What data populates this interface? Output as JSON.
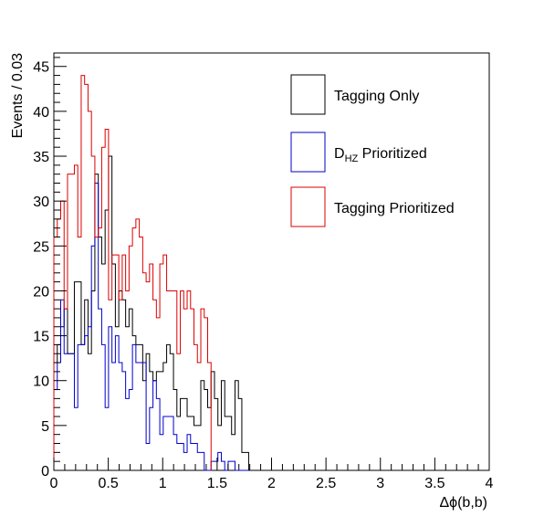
{
  "chart_data": {
    "type": "histogram",
    "title": "",
    "xlabel": "Δϕ(b,b)",
    "ylabel": "Events / 0.03",
    "xlim": [
      0,
      4
    ],
    "ylim": [
      0,
      46.5
    ],
    "bin_width": 0.0314,
    "x_ticks": [
      "0",
      "0.5",
      "1",
      "1.5",
      "2",
      "2.5",
      "3",
      "3.5",
      "4"
    ],
    "y_ticks": [
      "0",
      "5",
      "10",
      "15",
      "20",
      "25",
      "30",
      "35",
      "40",
      "45"
    ],
    "legend_position": "top-right",
    "grid": false,
    "series": [
      {
        "name": "Tagging Only",
        "color": "#000000",
        "values": [
          12,
          14,
          16,
          18,
          13,
          13,
          21,
          21,
          14,
          19,
          13,
          20,
          33,
          26,
          23,
          29,
          35,
          23,
          16,
          20,
          19,
          16,
          18,
          15,
          14,
          14,
          10,
          13,
          11,
          10,
          11,
          11,
          12,
          14,
          13,
          9,
          6,
          8,
          8,
          6,
          6,
          5,
          5,
          10,
          9,
          7,
          11,
          8,
          5,
          10,
          6,
          6,
          4,
          10,
          8,
          2,
          2
        ]
      },
      {
        "name": "D_HZ Prioritized",
        "color": "#0000cc",
        "values": [
          9,
          12,
          19,
          13,
          13,
          13,
          7,
          14,
          14,
          15,
          16,
          25,
          32,
          18,
          14,
          7,
          16,
          12,
          15,
          12,
          11,
          8,
          9,
          14,
          12,
          12,
          12,
          3,
          7,
          10,
          8,
          4,
          6,
          6,
          6,
          4,
          3,
          3,
          2,
          4,
          3,
          3,
          2,
          2,
          0,
          0,
          1,
          1,
          2,
          1,
          0,
          1,
          1,
          0,
          0,
          0,
          0
        ]
      },
      {
        "name": "Tagging Prioritized",
        "color": "#dd0000",
        "values": [
          26,
          28,
          30,
          18,
          33,
          33,
          34,
          26,
          44,
          43,
          40,
          35,
          26,
          27,
          36,
          38,
          19,
          24,
          24,
          19,
          24,
          20,
          25,
          27,
          28,
          26,
          22,
          21,
          23,
          19,
          17,
          23,
          24,
          20,
          20,
          20,
          13,
          20,
          18,
          20,
          18,
          14,
          12,
          18,
          17,
          12
        ]
      }
    ]
  }
}
